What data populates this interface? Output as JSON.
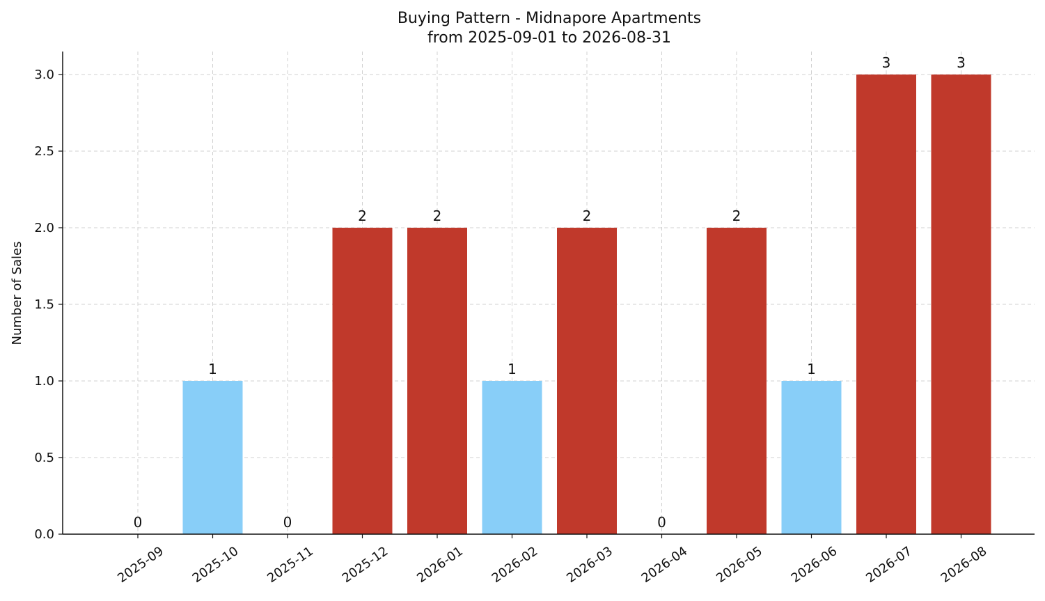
{
  "chart_data": {
    "type": "bar",
    "title": "Buying Pattern - Midnapore Apartments",
    "subtitle": "from 2025-09-01 to 2026-08-31",
    "xlabel": "",
    "ylabel": "Number of Sales",
    "categories": [
      "2025-09",
      "2025-10",
      "2025-11",
      "2025-12",
      "2026-01",
      "2026-02",
      "2026-03",
      "2026-04",
      "2026-05",
      "2026-06",
      "2026-07",
      "2026-08"
    ],
    "values": [
      0,
      1,
      0,
      2,
      2,
      1,
      2,
      0,
      2,
      1,
      3,
      3
    ],
    "data_labels": [
      "0",
      "1",
      "0",
      "2",
      "2",
      "1",
      "2",
      "0",
      "2",
      "1",
      "3",
      "3"
    ],
    "bar_colors": [
      "#88cef8",
      "#88cef8",
      "#88cef8",
      "#c0392b",
      "#c0392b",
      "#88cef8",
      "#c0392b",
      "#88cef8",
      "#c0392b",
      "#88cef8",
      "#c0392b",
      "#c0392b"
    ],
    "ylim": [
      0,
      3.15
    ],
    "yticks": [
      0,
      0.5,
      1,
      1.5,
      2,
      2.5,
      3
    ],
    "ytick_labels": [
      "0.0",
      "0.5",
      "1.0",
      "1.5",
      "2.0",
      "2.5",
      "3.0"
    ],
    "grid": true,
    "legend": "none"
  }
}
